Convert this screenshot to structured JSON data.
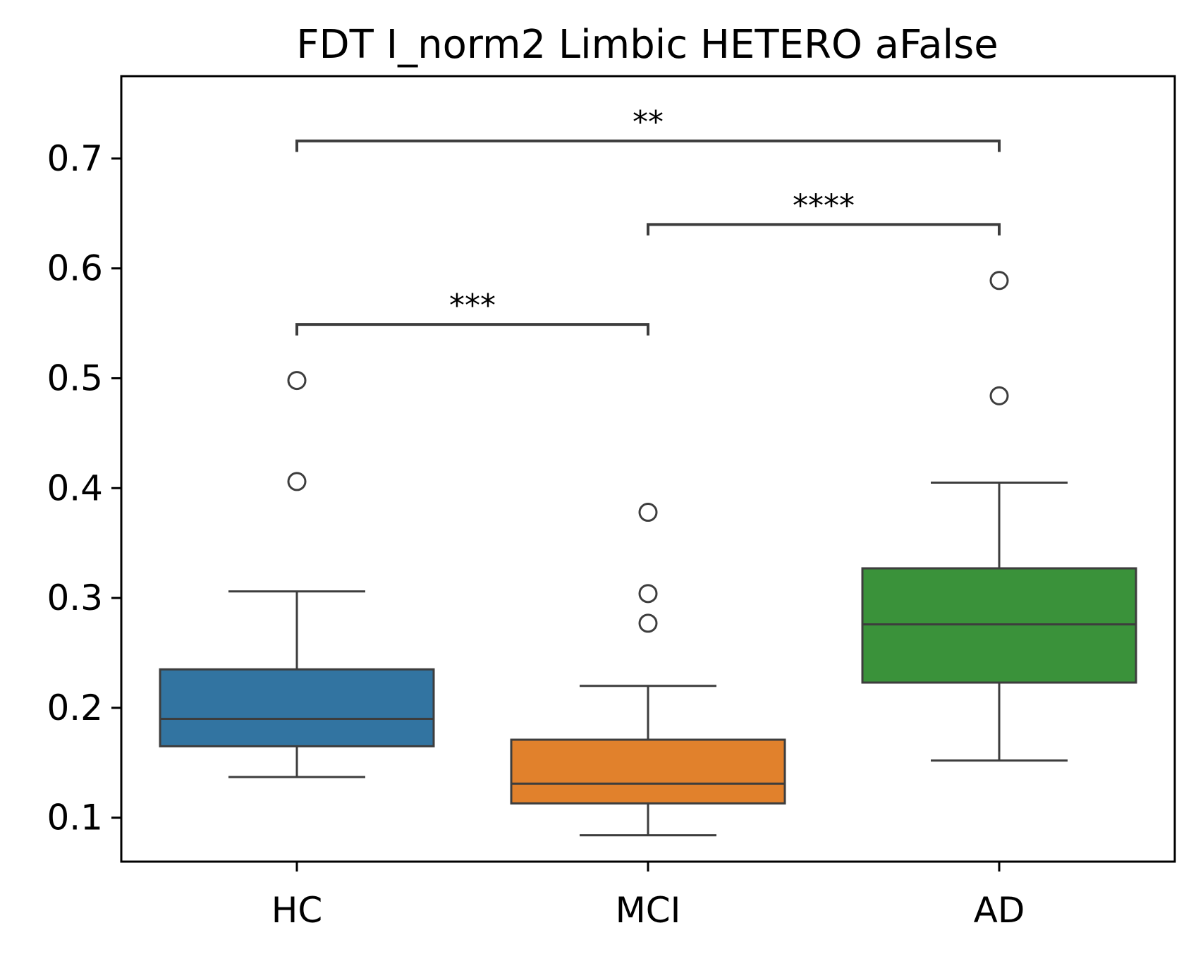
{
  "chart_data": {
    "type": "box",
    "title": "FDT I_norm2 Limbic HETERO aFalse",
    "xlabel": "",
    "ylabel": "",
    "ylim": [
      0.06,
      0.775
    ],
    "yticks": [
      0.1,
      0.2,
      0.3,
      0.4,
      0.5,
      0.6,
      0.7
    ],
    "ytick_labels": [
      "0.1",
      "0.2",
      "0.3",
      "0.4",
      "0.5",
      "0.6",
      "0.7"
    ],
    "grid": false,
    "categories": [
      "HC",
      "MCI",
      "AD"
    ],
    "boxes": [
      {
        "category": "HC",
        "color": "#3274a1",
        "whisker_low": 0.137,
        "q1": 0.165,
        "median": 0.19,
        "q3": 0.235,
        "whisker_high": 0.306,
        "outliers": [
          0.406,
          0.498
        ]
      },
      {
        "category": "MCI",
        "color": "#e1812c",
        "whisker_low": 0.084,
        "q1": 0.113,
        "median": 0.131,
        "q3": 0.171,
        "whisker_high": 0.22,
        "outliers": [
          0.277,
          0.304,
          0.378
        ]
      },
      {
        "category": "AD",
        "color": "#3a923a",
        "whisker_low": 0.152,
        "q1": 0.223,
        "median": 0.276,
        "q3": 0.327,
        "whisker_high": 0.405,
        "outliers": [
          0.484,
          0.589
        ]
      }
    ],
    "annotations": [
      {
        "from": "HC",
        "to": "MCI",
        "label": "***",
        "y": 0.549,
        "tick_y": 0.539
      },
      {
        "from": "MCI",
        "to": "AD",
        "label": "****",
        "y": 0.64,
        "tick_y": 0.63
      },
      {
        "from": "HC",
        "to": "AD",
        "label": "**",
        "y": 0.716,
        "tick_y": 0.706
      }
    ],
    "colors": {
      "axis": "#000000",
      "line": "#3d3d3d",
      "background": "#ffffff"
    }
  }
}
